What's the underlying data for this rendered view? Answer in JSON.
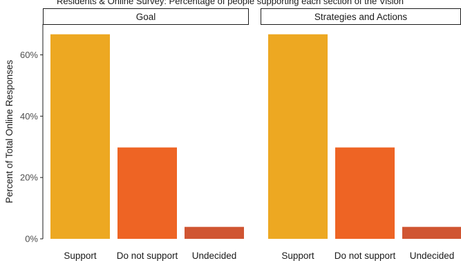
{
  "title": "Residents & Online Survey: Percentage of people supporting each section of the Vision",
  "colors": {
    "support": "#EDA822",
    "do_not_support": "#EE6424",
    "undecided": "#D05532",
    "strip_border": "#1a1a1a",
    "axis": "#1a1a1a"
  },
  "chart_data": {
    "type": "bar",
    "ylabel": "Percent of Total Online Responses",
    "xlabel": "",
    "ylim": [
      0,
      70
    ],
    "yticks": [
      0,
      20,
      40,
      60
    ],
    "ytick_labels": [
      "0%",
      "20%",
      "40%",
      "60%"
    ],
    "categories": [
      "Support",
      "Do not support",
      "Undecided"
    ],
    "panels": [
      {
        "label": "Goal",
        "values": [
          66.7,
          29.8,
          3.9
        ]
      },
      {
        "label": "Strategies and Actions",
        "values": [
          66.7,
          29.8,
          3.9
        ]
      }
    ]
  }
}
